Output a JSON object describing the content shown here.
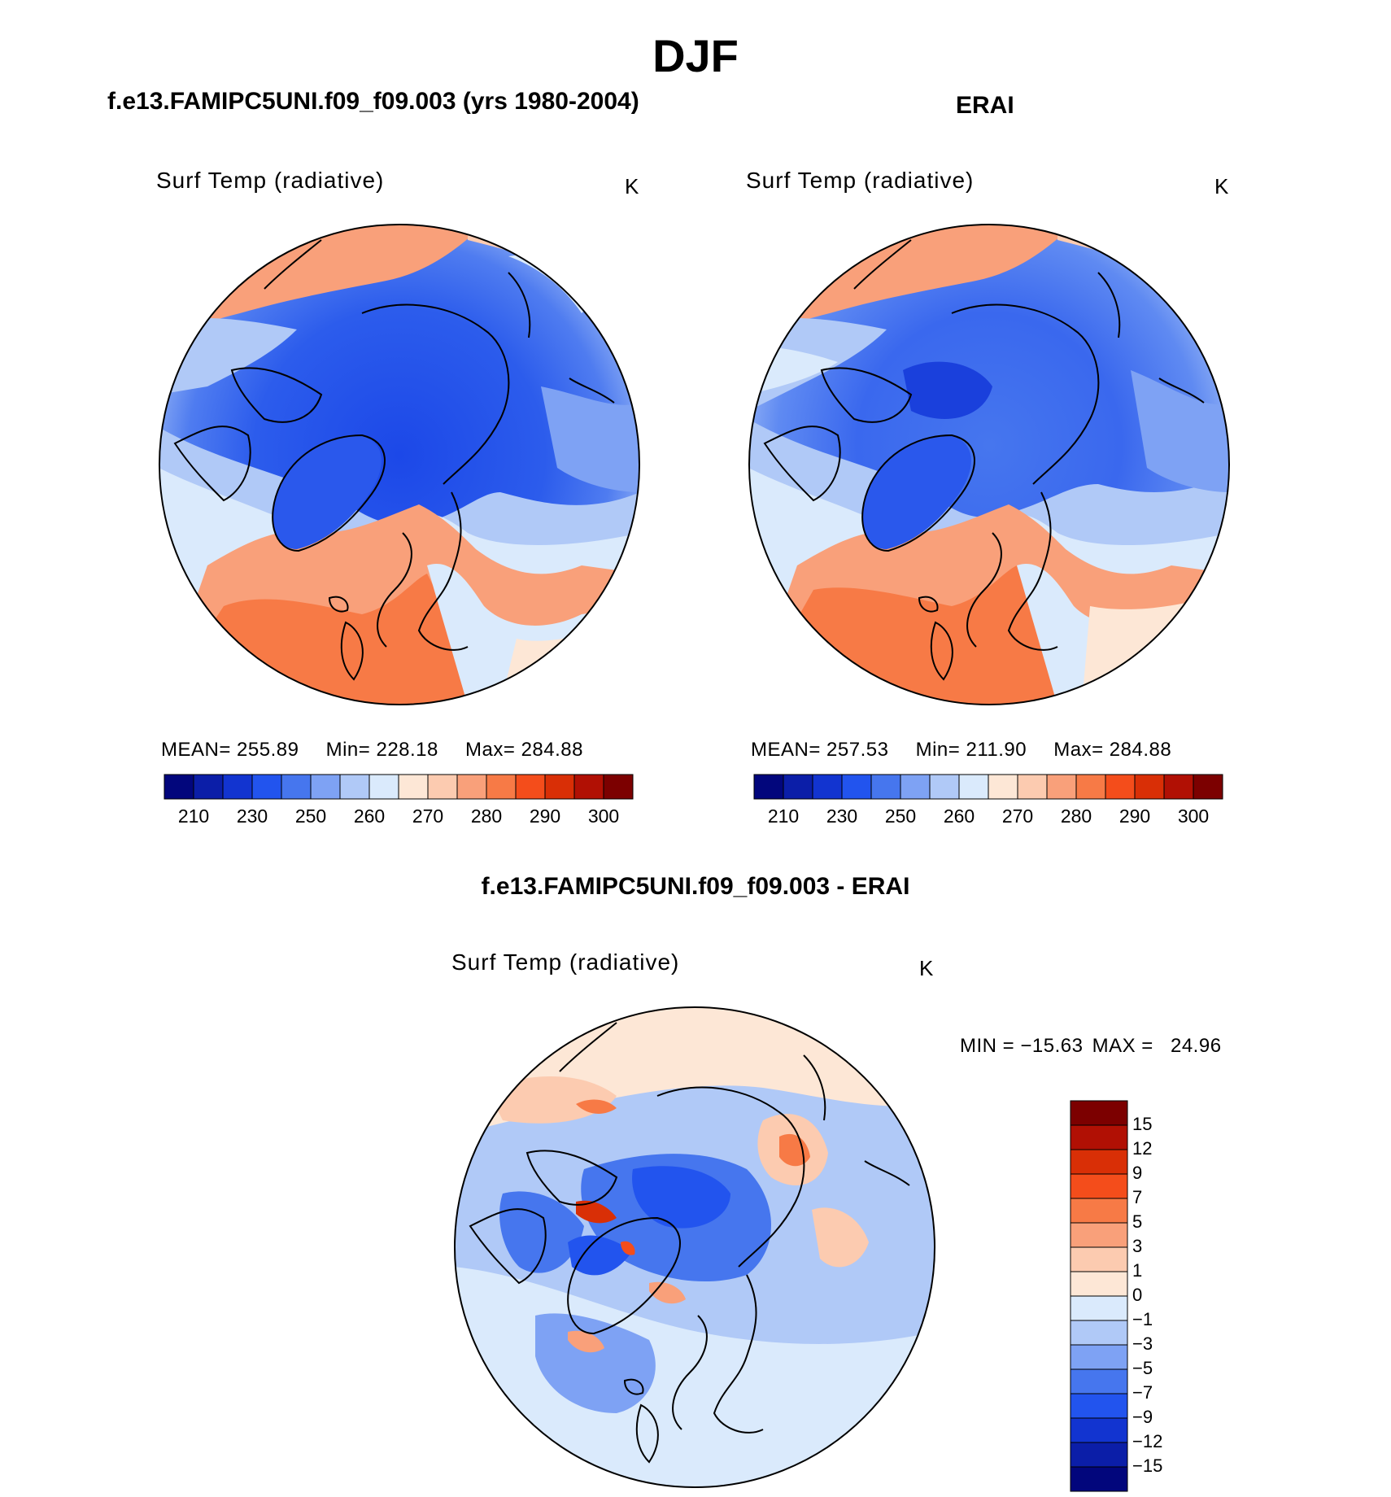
{
  "figure": {
    "title": "DJF",
    "model_title": "f.e13.FAMIPC5UNI.f09_f09.003 (yrs 1980-2004)",
    "obs_title": "ERAI",
    "diff_title": "f.e13.FAMIPC5UNI.f09_f09.003 - ERAI"
  },
  "panels": {
    "model": {
      "name": "Surf Temp (radiative)",
      "units": "K",
      "mean_label": "MEAN=",
      "mean_value": "255.89",
      "min_label": "Min=",
      "min_value": "228.18",
      "max_label": "Max=",
      "max_value": "284.88"
    },
    "obs": {
      "name": "Surf Temp (radiative)",
      "units": "K",
      "mean_label": "MEAN=",
      "mean_value": "257.53",
      "min_label": "Min=",
      "min_value": "211.90",
      "max_label": "Max=",
      "max_value": "284.88"
    },
    "diff": {
      "name": "Surf Temp (radiative)",
      "units": "K",
      "min_label": "MIN =",
      "min_value": "−15.63",
      "max_label": "MAX =",
      "max_value": "24.96"
    }
  },
  "chart_data": [
    {
      "type": "heatmap",
      "projection": "north polar stereographic",
      "title": "Surf Temp (radiative)",
      "units": "K",
      "colorbar_tick_labels": [
        "210",
        "230",
        "250",
        "260",
        "270",
        "280",
        "290",
        "300"
      ],
      "colorbar_levels": [
        210,
        220,
        230,
        240,
        250,
        255,
        260,
        265,
        270,
        275,
        280,
        285,
        290,
        295,
        300
      ],
      "colorbar_colors": [
        "#02067c",
        "#0b1ea8",
        "#1234d0",
        "#2254ee",
        "#4676ee",
        "#7ea2f4",
        "#b0c9f7",
        "#daeafc",
        "#fde7d6",
        "#fccbb0",
        "#f9a07a",
        "#f77a46",
        "#f44d1b",
        "#d92f06",
        "#b11004",
        "#7c0000"
      ],
      "mean": 255.89,
      "min": 228.18,
      "max": 284.88
    },
    {
      "type": "heatmap",
      "projection": "north polar stereographic",
      "title": "Surf Temp (radiative)",
      "units": "K",
      "colorbar_tick_labels": [
        "210",
        "230",
        "250",
        "260",
        "270",
        "280",
        "290",
        "300"
      ],
      "mean": 257.53,
      "min": 211.9,
      "max": 284.88
    },
    {
      "type": "heatmap",
      "projection": "north polar stereographic",
      "title": "Surf Temp (radiative)",
      "units": "K",
      "colorbar_levels": [
        -15,
        -12,
        -9,
        -7,
        -5,
        -3,
        -1,
        0,
        1,
        3,
        5,
        7,
        9,
        12,
        15
      ],
      "colorbar_tick_labels": [
        "15",
        "12",
        "9",
        "7",
        "5",
        "3",
        "1",
        "0",
        "−1",
        "−3",
        "−5",
        "−7",
        "−9",
        "−12",
        "−15"
      ],
      "colorbar_colors_top_to_bottom": [
        "#7c0000",
        "#b11004",
        "#d92f06",
        "#f44d1b",
        "#f77a46",
        "#f9a07a",
        "#fccbb0",
        "#fde7d6",
        "#daeafc",
        "#b0c9f7",
        "#7ea2f4",
        "#4676ee",
        "#2254ee",
        "#1234d0",
        "#0b1ea8",
        "#02067c"
      ],
      "min": -15.63,
      "max": 24.96
    }
  ]
}
